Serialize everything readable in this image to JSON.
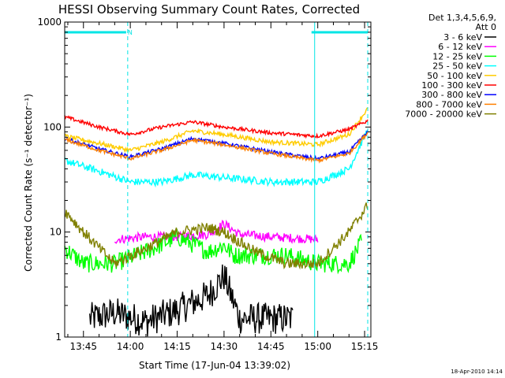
{
  "chart_data": {
    "type": "line",
    "title": "HESSI Observing Summary Count Rates, Corrected",
    "xlabel": "Start Time (17-Jun-04 13:39:02)",
    "ylabel": "Corrected Count Rate (s⁻¹ detector⁻¹)",
    "y_scale": "log",
    "ylim": [
      1,
      1000
    ],
    "y_ticks": [
      {
        "value": 1,
        "label": "1"
      },
      {
        "value": 10,
        "label": "10"
      },
      {
        "value": 100,
        "label": "100"
      },
      {
        "value": 1000,
        "label": "1000"
      }
    ],
    "xlim": [
      "13:39",
      "15:17"
    ],
    "x_ticks": [
      "13:45",
      "14:00",
      "14:15",
      "14:30",
      "14:45",
      "15:00",
      "15:15"
    ],
    "grid": false,
    "legend_position": "right",
    "legend_header": [
      "Det 1,3,4,5,6,9,",
      "Att 0"
    ],
    "annotation_markers": [
      {
        "label": "N",
        "time": "13:58:40"
      }
    ],
    "bars": [
      {
        "start": "13:39",
        "end": "13:58:40",
        "color": "#00e5e5"
      },
      {
        "start": "14:58",
        "end": "15:16",
        "color": "#00e5e5"
      }
    ],
    "vertical_lines": [
      {
        "time": "13:59:10",
        "style": "dashed",
        "color": "#00e5e5"
      },
      {
        "time": "14:59",
        "style": "solid",
        "color": "#00e5e5"
      },
      {
        "time": "15:16",
        "style": "dashed",
        "color": "#00e5e5"
      }
    ],
    "timestamp": "18-Apr-2010 14:14",
    "series": [
      {
        "name": "3 - 6 keV",
        "color": "#000000",
        "x": [
          "13:47",
          "13:55",
          "14:05",
          "14:15",
          "14:25",
          "14:30",
          "14:35",
          "14:45",
          "14:52"
        ],
        "values": [
          1.5,
          1.7,
          1.4,
          1.8,
          2.5,
          3.8,
          1.5,
          1.5,
          1.5
        ]
      },
      {
        "name": "6 - 12 keV",
        "color": "#ff00ff",
        "x": [
          "13:55",
          "14:05",
          "14:15",
          "14:25",
          "14:30",
          "14:35",
          "14:45",
          "15:00"
        ],
        "values": [
          8.5,
          9,
          9,
          9.5,
          12,
          9.5,
          9,
          8.5
        ]
      },
      {
        "name": "12 - 25 keV",
        "color": "#00ff00",
        "x": [
          "13:39",
          "13:45",
          "13:55",
          "14:05",
          "14:15",
          "14:25",
          "14:30",
          "14:33",
          "14:40",
          "14:50",
          "15:00",
          "15:10",
          "15:14"
        ],
        "values": [
          7,
          5,
          5,
          6.5,
          9,
          6.5,
          7.5,
          6,
          6,
          6,
          5,
          5,
          8
        ]
      },
      {
        "name": "25 - 50 keV",
        "color": "#00ffff",
        "x": [
          "13:39",
          "13:50",
          "14:00",
          "14:10",
          "14:20",
          "14:30",
          "14:45",
          "15:00",
          "15:10",
          "15:16"
        ],
        "values": [
          48,
          38,
          30,
          30,
          35,
          33,
          30,
          30,
          40,
          95
        ]
      },
      {
        "name": "50 - 100 keV",
        "color": "#ffcc00",
        "x": [
          "13:39",
          "13:50",
          "14:00",
          "14:10",
          "14:20",
          "14:30",
          "14:45",
          "15:00",
          "15:10",
          "15:16"
        ],
        "values": [
          82,
          70,
          60,
          72,
          92,
          85,
          72,
          68,
          85,
          150
        ]
      },
      {
        "name": "100 - 300 keV",
        "color": "#ff0000",
        "x": [
          "13:39",
          "13:50",
          "14:00",
          "14:10",
          "14:20",
          "14:30",
          "14:45",
          "15:00",
          "15:10",
          "15:16"
        ],
        "values": [
          125,
          100,
          85,
          100,
          112,
          100,
          88,
          82,
          95,
          115
        ]
      },
      {
        "name": "300 - 800 keV",
        "color": "#0000ff",
        "x": [
          "13:39",
          "13:50",
          "14:00",
          "14:10",
          "14:20",
          "14:30",
          "14:45",
          "15:00",
          "15:10",
          "15:16"
        ],
        "values": [
          78,
          62,
          52,
          62,
          78,
          70,
          58,
          50,
          58,
          90
        ]
      },
      {
        "name": "800 - 7000 keV",
        "color": "#ff8000",
        "x": [
          "13:39",
          "13:50",
          "14:00",
          "14:10",
          "14:20",
          "14:30",
          "14:45",
          "15:00",
          "15:10",
          "15:16"
        ],
        "values": [
          76,
          60,
          50,
          60,
          75,
          68,
          56,
          48,
          56,
          88
        ]
      },
      {
        "name": "7000 - 20000 keV",
        "color": "#808000",
        "x": [
          "13:39",
          "13:45",
          "13:55",
          "14:05",
          "14:15",
          "14:25",
          "14:30",
          "14:40",
          "14:50",
          "15:00",
          "15:10",
          "15:16"
        ],
        "values": [
          16,
          10,
          5,
          7,
          10,
          11,
          10,
          6.5,
          5,
          5,
          10,
          18
        ]
      }
    ]
  }
}
